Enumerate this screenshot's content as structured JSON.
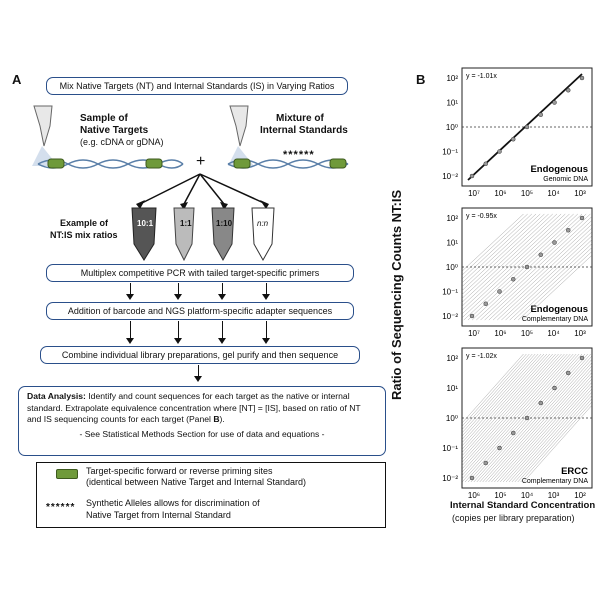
{
  "panelA": {
    "letter": "A",
    "top_box": "Mix Native Targets (NT) and Internal Standards (IS) in Varying Ratios",
    "sample_label_line1": "Sample of",
    "sample_label_line2": "Native Targets",
    "sample_label_line3": "(e.g. cDNA or gDNA)",
    "mixture_label_line1": "Mixture of",
    "mixture_label_line2": "Internal Standards",
    "plus": "+",
    "asterisks": "******",
    "example_line1": "Example of",
    "example_line2": "NT:IS mix ratios",
    "tubes": [
      "10:1",
      "1:1",
      "1:10",
      "n:n"
    ],
    "step1": "Multiplex competitive PCR with tailed target-specific primers",
    "step2": "Addition of barcode and NGS platform-specific adapter sequences",
    "step3": "Combine individual library preparations, gel purify and then sequence",
    "analysis_title": "Data Analysis:",
    "analysis_text": " Identify and count sequences for each target as the native or internal standard.  Extrapolate equivalence concentration where [NT] = [IS], based on ratio of NT and IS sequencing counts for each target (Panel ",
    "analysis_panel_ref": "B",
    "analysis_end": ").",
    "analysis_note": "- See Statistical Methods Section for use of data and equations -",
    "legend_green_line1": "Target-specific forward or reverse priming sites",
    "legend_green_line2": "(identical between Native Target and Internal Standard)",
    "legend_star_symbol": "******",
    "legend_star_line1": "Synthetic Alleles allows for discrimination of",
    "legend_star_line2": "Native Target from Internal Standard"
  },
  "panelB": {
    "letter": "B",
    "ylabel": "Ratio of Sequencing Counts NT:IS",
    "xlabel": "Internal Standard Concentration",
    "xlabel_sub": "(copies per library preparation)",
    "y_ticks": [
      "10²",
      "10¹",
      "10⁰",
      "10⁻¹",
      "10⁻²"
    ],
    "plots": [
      {
        "equation": "y = -1.01x",
        "title": "Endogenous",
        "subtitle": "Genomic DNA",
        "x_ticks": [
          "10⁷",
          "10⁶",
          "10⁵",
          "10⁴",
          "10³"
        ]
      },
      {
        "equation": "y = -0.95x",
        "title": "Endogenous",
        "subtitle": "Complementary DNA",
        "x_ticks": [
          "10⁷",
          "10⁶",
          "10⁵",
          "10⁴",
          "10³"
        ]
      },
      {
        "equation": "y = -1.02x",
        "title": "ERCC",
        "subtitle": "Complementary DNA",
        "x_ticks": [
          "10⁶",
          "10⁵",
          "10⁴",
          "10³",
          "10²"
        ]
      }
    ]
  },
  "colors": {
    "box_border": "#2a4f8a",
    "primer_green": "#6f9a3a",
    "dna_blue": "#5a7fa8"
  }
}
